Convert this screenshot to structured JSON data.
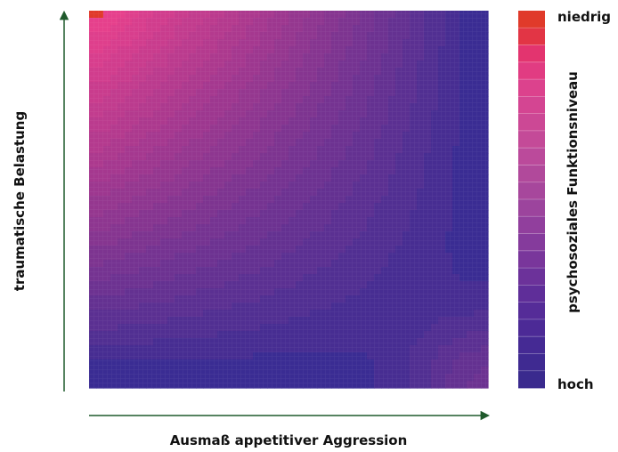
{
  "chart_data": {
    "type": "heatmap",
    "title": "",
    "xlabel": "Ausmaß appetitiver Aggression",
    "ylabel": "traumatische Belastung",
    "grid": true,
    "colorbar": {
      "title": "psychosoziales Funktionsniveau",
      "top_label": "niedrig",
      "bottom_label": "hoch",
      "colors": [
        "#e03a2a",
        "#e23545",
        "#e3346f",
        "#e13c82",
        "#dc428d",
        "#d44592",
        "#cc4895",
        "#c44a98",
        "#bb4a9b",
        "#b1499b",
        "#a7479c",
        "#9c449d",
        "#913f9d",
        "#853b9c",
        "#79369b",
        "#6c329a",
        "#5f2e99",
        "#552c98",
        "#4c2a96",
        "#452a94",
        "#3f2a91",
        "#3a2a8e"
      ]
    }
  },
  "colors": {
    "axis_arrow": "#1f5a2c",
    "low_function": "#e8408c",
    "high_function": "#3a2c93"
  }
}
